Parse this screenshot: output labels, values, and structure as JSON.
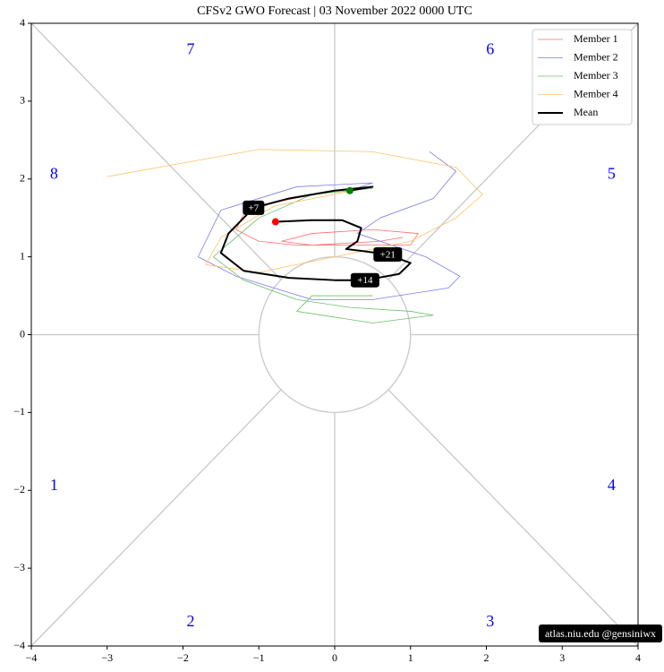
{
  "chart_data": {
    "type": "line",
    "title": "CFSv2 GWO Forecast  |  03  November  2022 0000 UTC",
    "xlim": [
      -4,
      4
    ],
    "ylim": [
      -4,
      4
    ],
    "xticks": [
      {
        "value": -4,
        "label": "−4"
      },
      {
        "value": -3,
        "label": "−3"
      },
      {
        "value": -2,
        "label": "−2"
      },
      {
        "value": -1,
        "label": "−1"
      },
      0,
      1,
      2,
      3,
      4
    ],
    "yticks": [
      {
        "value": -4,
        "label": "−4"
      },
      {
        "value": -3,
        "label": "−3"
      },
      {
        "value": -2,
        "label": "−2"
      },
      {
        "value": -1,
        "label": "−1"
      },
      0,
      1,
      2,
      3,
      4
    ],
    "legend": "upper right",
    "phase_labels": [
      "1",
      "2",
      "3",
      "4",
      "5",
      "6",
      "7",
      "8"
    ],
    "series": [
      {
        "name": "Member 1",
        "color": "#ff6b6b",
        "width": 0.8,
        "x": [
          0.2,
          0.5,
          0.0,
          -0.8,
          -1.2,
          -1.3,
          -1.0,
          -0.5,
          0.3,
          1.0,
          1.1,
          0.5,
          -0.3,
          -0.7,
          -0.3,
          0.6,
          0.9
        ],
        "values": [
          1.85,
          1.9,
          1.85,
          1.7,
          1.55,
          1.35,
          1.2,
          1.15,
          1.15,
          1.15,
          1.3,
          1.35,
          1.3,
          1.2,
          1.15,
          1.2,
          1.25
        ]
      },
      {
        "name": "Member 2",
        "color": "#7b7bf0",
        "width": 0.8,
        "x": [
          0.2,
          0.5,
          -0.5,
          -1.5,
          -1.8,
          -1.3,
          -0.3,
          0.5,
          1.5,
          1.65,
          1.2,
          0.3,
          0.6,
          1.3,
          1.6,
          1.25
        ],
        "values": [
          1.85,
          1.95,
          1.9,
          1.6,
          1.0,
          0.75,
          0.45,
          0.45,
          0.6,
          0.75,
          1.0,
          1.3,
          1.5,
          1.75,
          2.1,
          2.35
        ]
      },
      {
        "name": "Member 3",
        "color": "#6bbf6b",
        "width": 0.8,
        "x": [
          0.2,
          0.5,
          -0.3,
          -1.0,
          -1.6,
          -1.2,
          -0.5,
          0.2,
          1.0,
          1.3,
          0.5,
          -0.5,
          -0.3,
          0.5
        ],
        "values": [
          1.85,
          1.88,
          1.8,
          1.5,
          1.0,
          0.7,
          0.45,
          0.35,
          0.3,
          0.25,
          0.15,
          0.3,
          0.5,
          0.5
        ]
      },
      {
        "name": "Member 4",
        "color": "#ffc266",
        "width": 0.8,
        "x": [
          0.2,
          0.5,
          -0.8,
          -1.5,
          -1.7,
          -1.0,
          0.0,
          1.0,
          1.6,
          1.95,
          1.6,
          0.5,
          -1.0,
          -3.0
        ],
        "values": [
          1.85,
          1.9,
          1.65,
          1.25,
          0.9,
          0.8,
          1.0,
          1.2,
          1.5,
          1.8,
          2.15,
          2.35,
          2.38,
          2.03
        ]
      },
      {
        "name": "Mean",
        "color": "#000000",
        "width": 2,
        "x": [
          0.2,
          0.5,
          0.0,
          -0.6,
          -1.07,
          -1.4,
          -1.5,
          -1.2,
          -0.6,
          0.0,
          0.4,
          0.85,
          1.0,
          0.7,
          0.4,
          0.15,
          0.3,
          0.35,
          0.1,
          -0.3,
          -0.78
        ],
        "values": [
          1.85,
          1.9,
          1.85,
          1.75,
          1.63,
          1.3,
          1.05,
          0.82,
          0.73,
          0.7,
          0.7,
          0.78,
          0.92,
          1.03,
          1.07,
          1.1,
          1.2,
          1.37,
          1.47,
          1.47,
          1.45
        ]
      }
    ],
    "markers": [
      {
        "x": 0.2,
        "y": 1.85,
        "color": "#008000"
      },
      {
        "x": -0.78,
        "y": 1.45,
        "color": "#ff0000"
      }
    ],
    "annotations": [
      {
        "text": "+7",
        "x": -1.07,
        "y": 1.63
      },
      {
        "text": "+14",
        "x": 0.4,
        "y": 0.7
      },
      {
        "text": "+21",
        "x": 0.7,
        "y": 1.03
      }
    ],
    "watermark": "atlas.niu.edu  @gensiniwx"
  }
}
